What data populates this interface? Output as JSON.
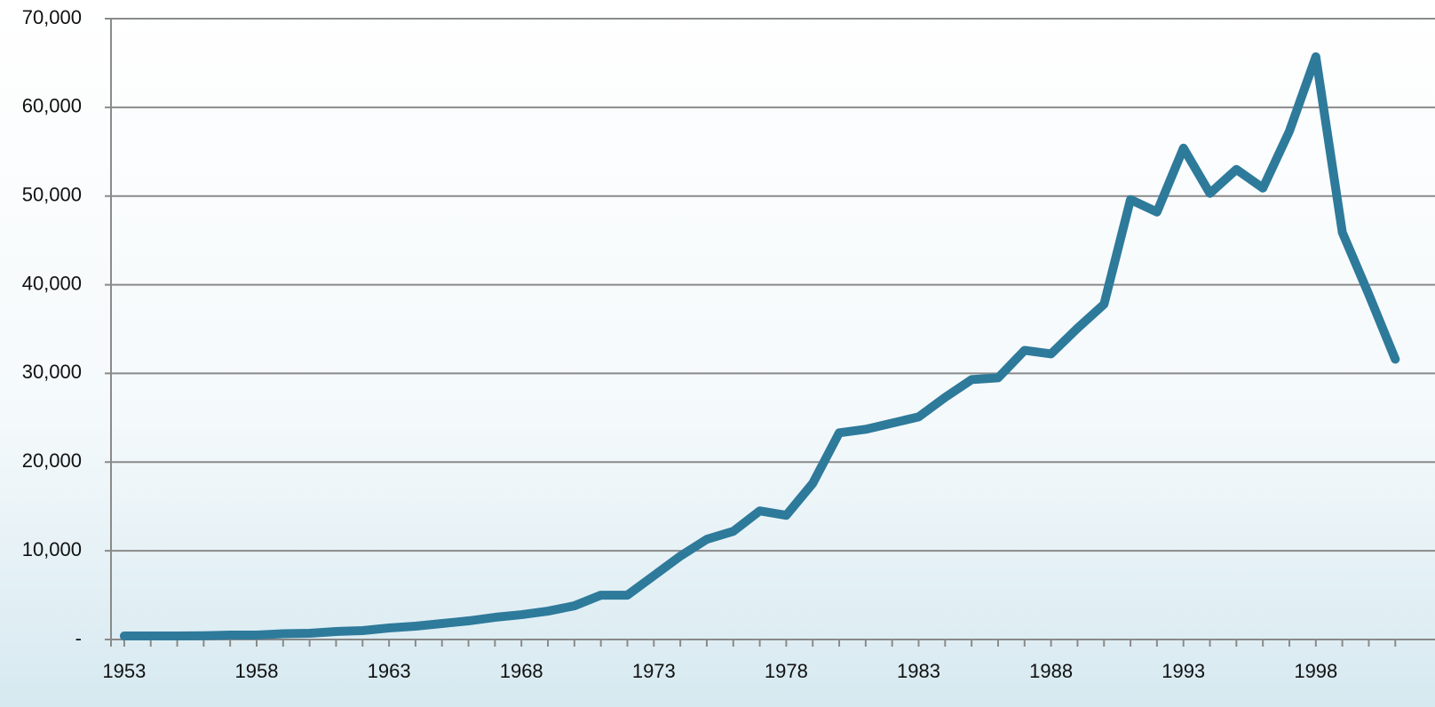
{
  "chart_data": {
    "type": "line",
    "x": [
      1953,
      1954,
      1955,
      1956,
      1957,
      1958,
      1959,
      1960,
      1961,
      1962,
      1963,
      1964,
      1965,
      1966,
      1967,
      1968,
      1969,
      1970,
      1971,
      1972,
      1973,
      1974,
      1975,
      1976,
      1977,
      1978,
      1979,
      1980,
      1981,
      1982,
      1983,
      1984,
      1985,
      1986,
      1987,
      1988,
      1989,
      1990,
      1991,
      1992,
      1993,
      1994,
      1995,
      1996,
      1997,
      1998,
      1999,
      2000,
      2001
    ],
    "series": [
      {
        "color": "#2e7a9b",
        "values": [
          400,
          400,
          400,
          420,
          500,
          500,
          650,
          700,
          900,
          1000,
          1300,
          1500,
          1800,
          2100,
          2500,
          2800,
          3200,
          3800,
          5000,
          5000,
          7200,
          9400,
          11300,
          12200,
          14500,
          14000,
          17600,
          23300,
          23700,
          24400,
          25100,
          27300,
          29300,
          29500,
          32600,
          32200,
          35100,
          37800,
          49600,
          48200,
          55400,
          50300,
          53000,
          50900,
          57300,
          65700,
          45900,
          38900,
          31600
        ]
      }
    ],
    "xlim": [
      1952.5,
      2002.5
    ],
    "xticks": [
      1953,
      1958,
      1963,
      1968,
      1973,
      1978,
      1983,
      1988,
      1993,
      1998
    ],
    "ylim": [
      0,
      70000
    ],
    "yticks": [
      {
        "value": 0,
        "label": "-"
      },
      {
        "value": 10000,
        "label": "10,000"
      },
      {
        "value": 20000,
        "label": "20,000"
      },
      {
        "value": 30000,
        "label": "30,000"
      },
      {
        "value": 40000,
        "label": "40,000"
      },
      {
        "value": 50000,
        "label": "50,000"
      },
      {
        "value": 60000,
        "label": "60,000"
      },
      {
        "value": 70000,
        "label": "70,000"
      }
    ],
    "grid": true
  }
}
